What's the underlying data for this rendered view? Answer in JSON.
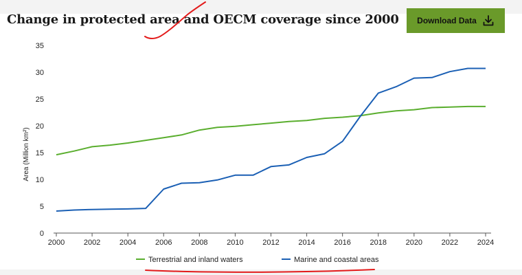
{
  "header": {
    "download_label": "Download Data",
    "download_icon": "download-icon"
  },
  "chart_data": {
    "type": "line",
    "title": "Change in protected area and OECM coverage since 2000",
    "xlabel": "",
    "ylabel": "Area (Million km²)",
    "xlim": [
      2000,
      2024
    ],
    "ylim": [
      0,
      35
    ],
    "xticks": [
      2000,
      2002,
      2004,
      2006,
      2008,
      2010,
      2012,
      2014,
      2016,
      2018,
      2020,
      2022,
      2024
    ],
    "yticks": [
      0,
      5,
      10,
      15,
      20,
      25,
      30,
      35
    ],
    "grid": false,
    "legend_position": "bottom",
    "series": [
      {
        "name": "Terrestrial and inland waters",
        "color": "#5aae2e",
        "x": [
          2000,
          2001,
          2002,
          2003,
          2004,
          2005,
          2006,
          2007,
          2008,
          2009,
          2010,
          2011,
          2012,
          2013,
          2014,
          2015,
          2016,
          2017,
          2018,
          2019,
          2020,
          2021,
          2022,
          2023,
          2024
        ],
        "y": [
          14.6,
          15.3,
          16.1,
          16.4,
          16.8,
          17.3,
          17.8,
          18.3,
          19.2,
          19.7,
          19.9,
          20.2,
          20.5,
          20.8,
          21.0,
          21.4,
          21.6,
          21.9,
          22.4,
          22.8,
          23.0,
          23.4,
          23.5,
          23.6,
          23.6
        ]
      },
      {
        "name": "Marine and coastal areas",
        "color": "#1a5fb4",
        "x": [
          2000,
          2001,
          2002,
          2003,
          2004,
          2005,
          2006,
          2007,
          2008,
          2009,
          2010,
          2011,
          2012,
          2013,
          2014,
          2015,
          2016,
          2017,
          2018,
          2019,
          2020,
          2021,
          2022,
          2023,
          2024
        ],
        "y": [
          4.1,
          4.3,
          4.4,
          4.45,
          4.5,
          4.6,
          8.2,
          9.3,
          9.4,
          9.9,
          10.8,
          10.8,
          12.4,
          12.7,
          14.1,
          14.8,
          17.1,
          21.8,
          26.1,
          27.3,
          28.9,
          29.0,
          30.1,
          30.7,
          30.7
        ]
      }
    ]
  }
}
